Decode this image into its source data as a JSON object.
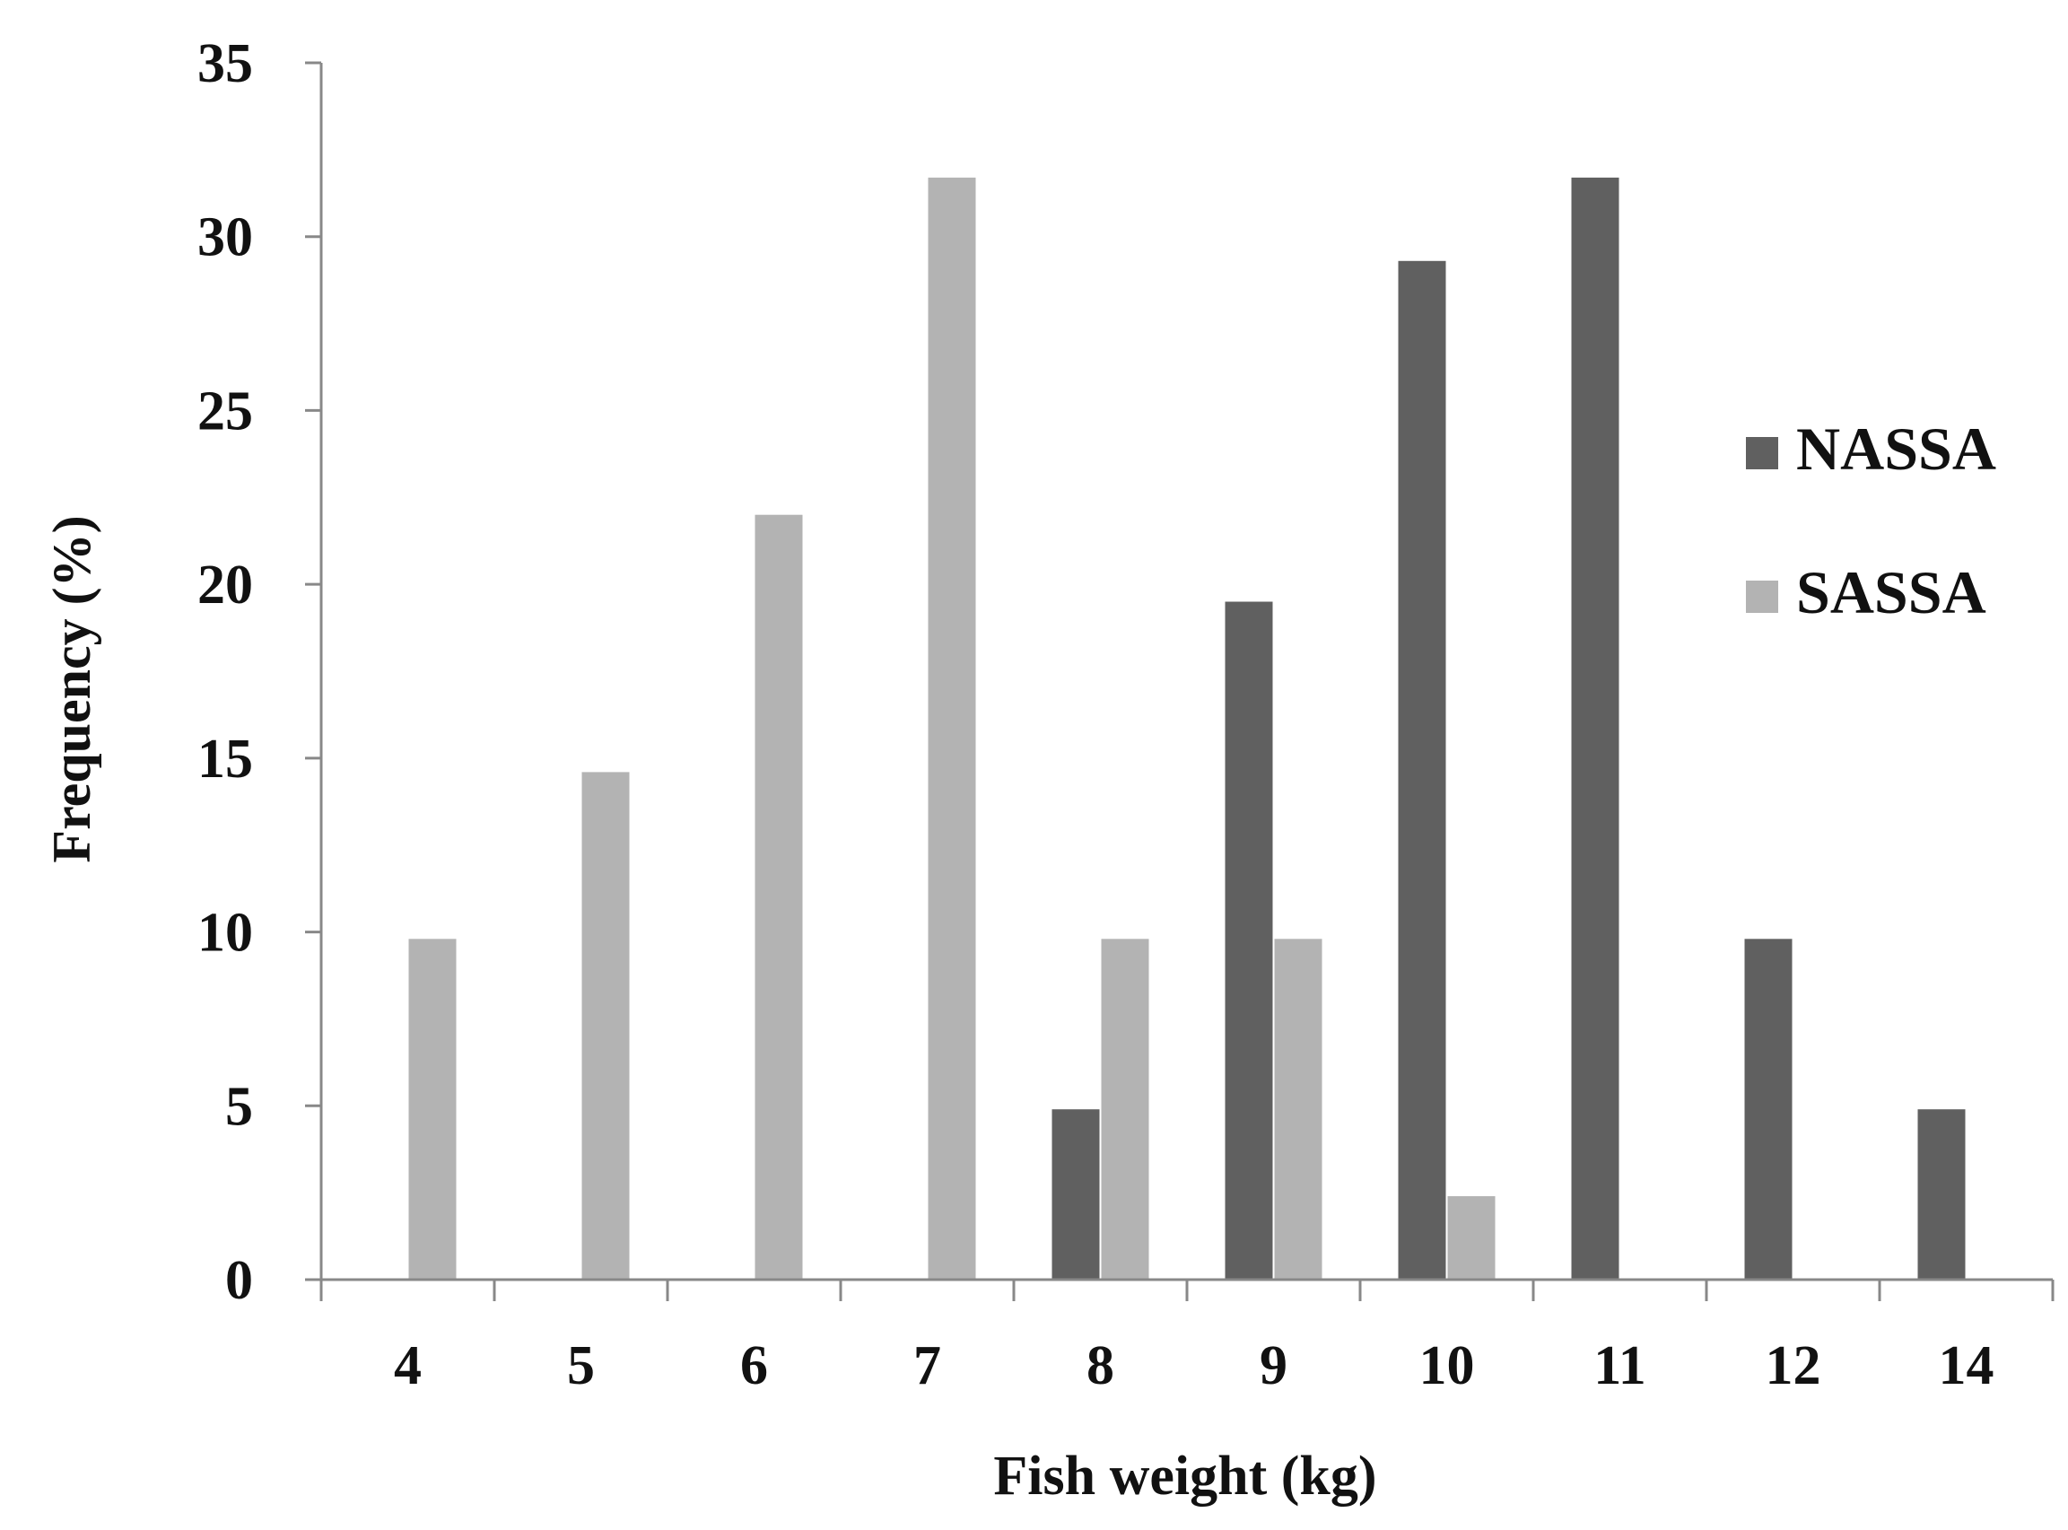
{
  "chart_data": {
    "type": "bar",
    "title": "",
    "xlabel": "Fish weight  (kg)",
    "ylabel": "Frequency  (%)",
    "categories": [
      "4",
      "5",
      "6",
      "7",
      "8",
      "9",
      "10",
      "11",
      "12",
      "14"
    ],
    "series": [
      {
        "name": "NASSA",
        "color": "#606060",
        "values": [
          0,
          0,
          0,
          0,
          4.9,
          19.5,
          29.3,
          31.7,
          9.8,
          4.9
        ]
      },
      {
        "name": "SASSA",
        "color": "#b3b3b3",
        "values": [
          9.8,
          14.6,
          22.0,
          31.7,
          9.8,
          9.8,
          2.4,
          0,
          0,
          0
        ]
      }
    ],
    "ylim": [
      0,
      35
    ],
    "yticks": [
      "0",
      "5",
      "10",
      "15",
      "20",
      "25",
      "30",
      "35"
    ],
    "grid": false,
    "legend_position": "right"
  }
}
